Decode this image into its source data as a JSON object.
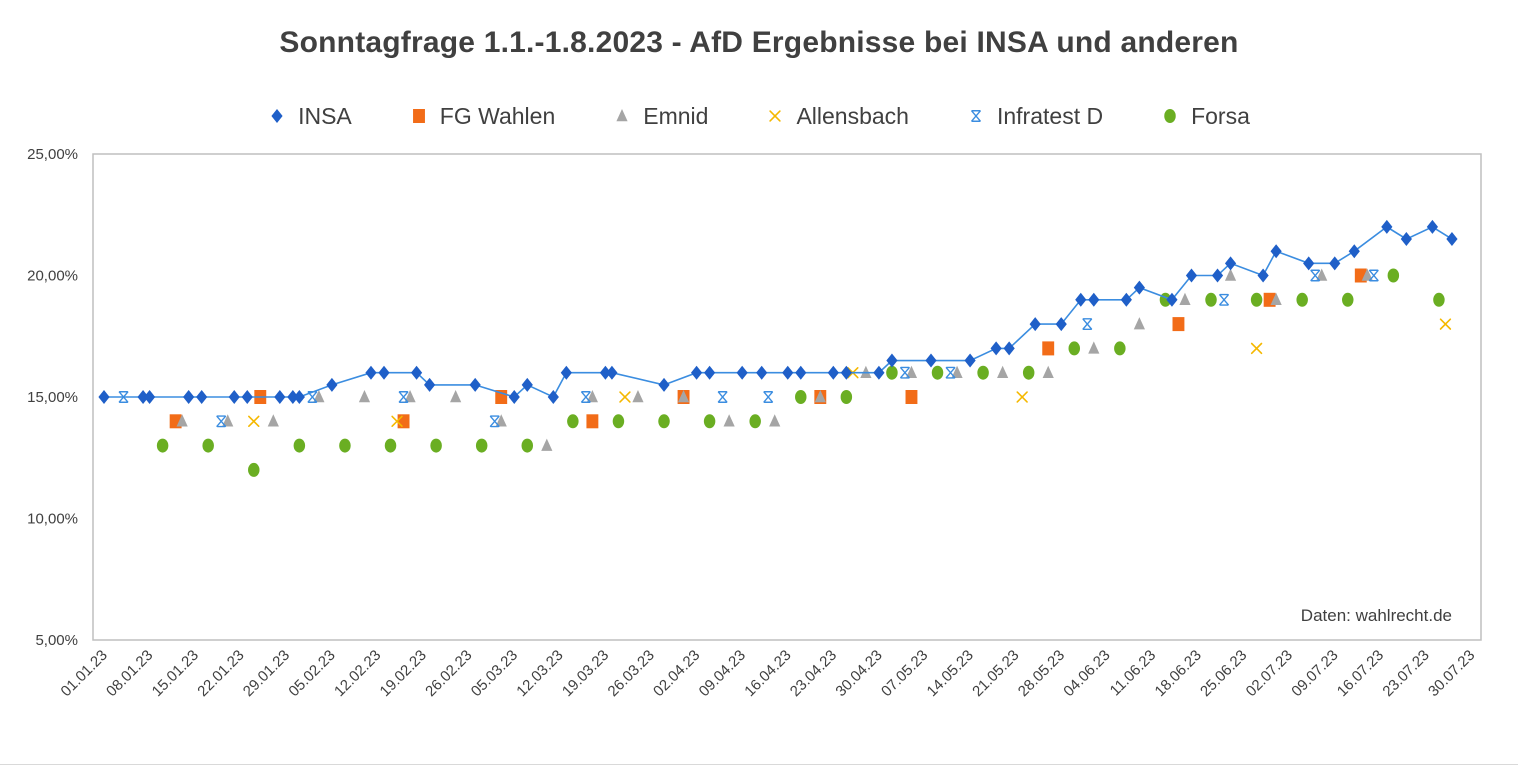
{
  "chart_data": {
    "type": "scatter",
    "title": "Sonntagfrage 1.1.-1.8.2023  -  AfD Ergebnisse bei INSA und anderen",
    "annotation": "Daten: wahlrecht.de",
    "xlabel": "",
    "ylabel": "",
    "xlim": [
      "2023-01-01",
      "2023-07-31"
    ],
    "ylim": [
      5,
      25
    ],
    "y_ticks": [
      "5,00%",
      "10,00%",
      "15,00%",
      "20,00%",
      "25,00%"
    ],
    "y_tick_values": [
      5,
      10,
      15,
      20,
      25
    ],
    "x_ticks": [
      "01.01.23",
      "08.01.23",
      "15.01.23",
      "22.01.23",
      "29.01.23",
      "05.02.23",
      "12.02.23",
      "19.02.23",
      "26.02.23",
      "05.03.23",
      "12.03.23",
      "19.03.23",
      "26.03.23",
      "02.04.23",
      "09.04.23",
      "16.04.23",
      "23.04.23",
      "30.04.23",
      "07.05.23",
      "14.05.23",
      "21.05.23",
      "28.05.23",
      "04.06.23",
      "11.06.23",
      "18.06.23",
      "25.06.23",
      "02.07.23",
      "09.07.23",
      "16.07.23",
      "23.07.23",
      "30.07.23"
    ],
    "x_tick_dates": [
      "2023-01-01",
      "2023-01-08",
      "2023-01-15",
      "2023-01-22",
      "2023-01-29",
      "2023-02-05",
      "2023-02-12",
      "2023-02-19",
      "2023-02-26",
      "2023-03-05",
      "2023-03-12",
      "2023-03-19",
      "2023-03-26",
      "2023-04-02",
      "2023-04-09",
      "2023-04-16",
      "2023-04-23",
      "2023-04-30",
      "2023-05-07",
      "2023-05-14",
      "2023-05-21",
      "2023-05-28",
      "2023-06-04",
      "2023-06-11",
      "2023-06-18",
      "2023-06-25",
      "2023-07-02",
      "2023-07-09",
      "2023-07-16",
      "2023-07-23",
      "2023-07-30"
    ],
    "grid": false,
    "legend_position": "top",
    "series": [
      {
        "name": "INSA",
        "marker": "diamond",
        "color": "#1f5fc8",
        "line": true,
        "line_color": "#3b8de0",
        "points": [
          [
            "2023-01-01",
            15
          ],
          [
            "2023-01-07",
            15
          ],
          [
            "2023-01-08",
            15
          ],
          [
            "2023-01-14",
            15
          ],
          [
            "2023-01-16",
            15
          ],
          [
            "2023-01-21",
            15
          ],
          [
            "2023-01-23",
            15
          ],
          [
            "2023-01-28",
            15
          ],
          [
            "2023-01-30",
            15
          ],
          [
            "2023-01-31",
            15
          ],
          [
            "2023-02-05",
            15.5
          ],
          [
            "2023-02-11",
            16
          ],
          [
            "2023-02-13",
            16
          ],
          [
            "2023-02-18",
            16
          ],
          [
            "2023-02-20",
            15.5
          ],
          [
            "2023-02-27",
            15.5
          ],
          [
            "2023-03-05",
            15
          ],
          [
            "2023-03-07",
            15.5
          ],
          [
            "2023-03-11",
            15
          ],
          [
            "2023-03-13",
            16
          ],
          [
            "2023-03-19",
            16
          ],
          [
            "2023-03-20",
            16
          ],
          [
            "2023-03-28",
            15.5
          ],
          [
            "2023-04-02",
            16
          ],
          [
            "2023-04-04",
            16
          ],
          [
            "2023-04-09",
            16
          ],
          [
            "2023-04-12",
            16
          ],
          [
            "2023-04-16",
            16
          ],
          [
            "2023-04-18",
            16
          ],
          [
            "2023-04-23",
            16
          ],
          [
            "2023-04-25",
            16
          ],
          [
            "2023-04-30",
            16
          ],
          [
            "2023-05-02",
            16.5
          ],
          [
            "2023-05-08",
            16.5
          ],
          [
            "2023-05-14",
            16.5
          ],
          [
            "2023-05-18",
            17
          ],
          [
            "2023-05-20",
            17
          ],
          [
            "2023-05-24",
            18
          ],
          [
            "2023-05-28",
            18
          ],
          [
            "2023-05-31",
            19
          ],
          [
            "2023-06-02",
            19
          ],
          [
            "2023-06-07",
            19
          ],
          [
            "2023-06-09",
            19.5
          ],
          [
            "2023-06-14",
            19
          ],
          [
            "2023-06-17",
            20
          ],
          [
            "2023-06-21",
            20
          ],
          [
            "2023-06-23",
            20.5
          ],
          [
            "2023-06-28",
            20
          ],
          [
            "2023-06-30",
            21
          ],
          [
            "2023-07-05",
            20.5
          ],
          [
            "2023-07-09",
            20.5
          ],
          [
            "2023-07-12",
            21
          ],
          [
            "2023-07-17",
            22
          ],
          [
            "2023-07-20",
            21.5
          ],
          [
            "2023-07-24",
            22
          ],
          [
            "2023-07-27",
            21.5
          ]
        ]
      },
      {
        "name": "FG Wahlen",
        "marker": "square",
        "color": "#f26c18",
        "line": false,
        "points": [
          [
            "2023-01-12",
            14
          ],
          [
            "2023-01-25",
            15
          ],
          [
            "2023-02-16",
            14
          ],
          [
            "2023-03-03",
            15
          ],
          [
            "2023-03-17",
            14
          ],
          [
            "2023-03-31",
            15
          ],
          [
            "2023-04-21",
            15
          ],
          [
            "2023-05-05",
            15
          ],
          [
            "2023-05-26",
            17
          ],
          [
            "2023-06-15",
            18
          ],
          [
            "2023-06-29",
            19
          ],
          [
            "2023-07-13",
            20
          ]
        ]
      },
      {
        "name": "Emnid",
        "marker": "triangle",
        "color": "#a5a5a5",
        "line": false,
        "points": [
          [
            "2023-01-13",
            14
          ],
          [
            "2023-01-20",
            14
          ],
          [
            "2023-01-27",
            14
          ],
          [
            "2023-02-03",
            15
          ],
          [
            "2023-02-10",
            15
          ],
          [
            "2023-02-17",
            15
          ],
          [
            "2023-02-24",
            15
          ],
          [
            "2023-03-03",
            14
          ],
          [
            "2023-03-10",
            13
          ],
          [
            "2023-03-17",
            15
          ],
          [
            "2023-03-24",
            15
          ],
          [
            "2023-03-31",
            15
          ],
          [
            "2023-04-07",
            14
          ],
          [
            "2023-04-14",
            14
          ],
          [
            "2023-04-21",
            15
          ],
          [
            "2023-04-28",
            16
          ],
          [
            "2023-05-05",
            16
          ],
          [
            "2023-05-12",
            16
          ],
          [
            "2023-05-19",
            16
          ],
          [
            "2023-05-26",
            16
          ],
          [
            "2023-06-02",
            17
          ],
          [
            "2023-06-09",
            18
          ],
          [
            "2023-06-16",
            19
          ],
          [
            "2023-06-23",
            20
          ],
          [
            "2023-06-30",
            19
          ],
          [
            "2023-07-07",
            20
          ],
          [
            "2023-07-14",
            20
          ]
        ]
      },
      {
        "name": "Allensbach",
        "marker": "x",
        "color": "#f5b800",
        "line": false,
        "points": [
          [
            "2023-01-24",
            14
          ],
          [
            "2023-02-15",
            14
          ],
          [
            "2023-03-22",
            15
          ],
          [
            "2023-04-26",
            16
          ],
          [
            "2023-05-22",
            15
          ],
          [
            "2023-06-27",
            17
          ],
          [
            "2023-07-26",
            18
          ]
        ]
      },
      {
        "name": "Infratest D",
        "marker": "asterisk",
        "color": "#3b8de0",
        "line": false,
        "points": [
          [
            "2023-01-04",
            15
          ],
          [
            "2023-01-19",
            14
          ],
          [
            "2023-02-02",
            15
          ],
          [
            "2023-02-16",
            15
          ],
          [
            "2023-03-02",
            14
          ],
          [
            "2023-03-16",
            15
          ],
          [
            "2023-04-06",
            15
          ],
          [
            "2023-04-13",
            15
          ],
          [
            "2023-05-04",
            16
          ],
          [
            "2023-05-11",
            16
          ],
          [
            "2023-06-01",
            18
          ],
          [
            "2023-06-22",
            19
          ],
          [
            "2023-07-06",
            20
          ],
          [
            "2023-07-15",
            20
          ]
        ]
      },
      {
        "name": "Forsa",
        "marker": "circle",
        "color": "#6aae22",
        "line": false,
        "points": [
          [
            "2023-01-10",
            13
          ],
          [
            "2023-01-17",
            13
          ],
          [
            "2023-01-24",
            12
          ],
          [
            "2023-01-31",
            13
          ],
          [
            "2023-02-07",
            13
          ],
          [
            "2023-02-14",
            13
          ],
          [
            "2023-02-21",
            13
          ],
          [
            "2023-02-28",
            13
          ],
          [
            "2023-03-07",
            13
          ],
          [
            "2023-03-14",
            14
          ],
          [
            "2023-03-21",
            14
          ],
          [
            "2023-03-28",
            14
          ],
          [
            "2023-04-04",
            14
          ],
          [
            "2023-04-11",
            14
          ],
          [
            "2023-04-18",
            15
          ],
          [
            "2023-04-25",
            15
          ],
          [
            "2023-05-02",
            16
          ],
          [
            "2023-05-09",
            16
          ],
          [
            "2023-05-16",
            16
          ],
          [
            "2023-05-23",
            16
          ],
          [
            "2023-05-30",
            17
          ],
          [
            "2023-06-06",
            17
          ],
          [
            "2023-06-13",
            19
          ],
          [
            "2023-06-20",
            19
          ],
          [
            "2023-06-27",
            19
          ],
          [
            "2023-07-04",
            19
          ],
          [
            "2023-07-11",
            19
          ],
          [
            "2023-07-18",
            20
          ],
          [
            "2023-07-25",
            19
          ]
        ]
      }
    ]
  }
}
